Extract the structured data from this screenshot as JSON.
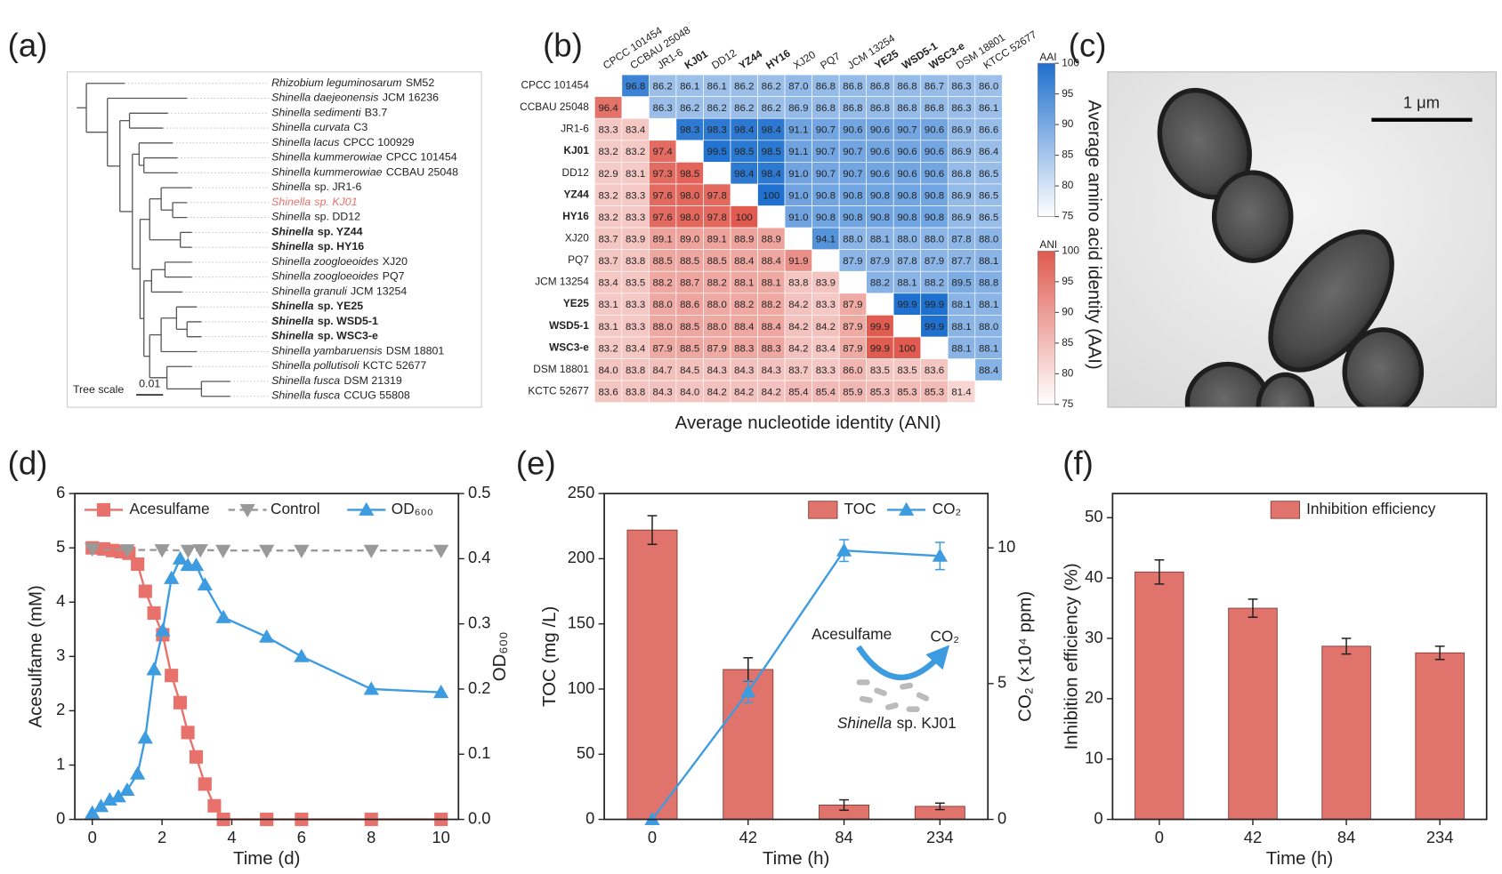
{
  "chart_data": [
    {
      "type": "tree",
      "label": "(a)",
      "leaves": [
        {
          "species": "Rhizobium leguminosarum",
          "strain": "SM52"
        },
        {
          "species": "Shinella daejeonensis",
          "strain": "JCM 16236"
        },
        {
          "species": "Shinella sedimenti",
          "strain": "B3.7"
        },
        {
          "species": "Shinella curvata",
          "strain": "C3"
        },
        {
          "species": "Shinella lacus",
          "strain": "CPCC 100929"
        },
        {
          "species": "Shinella kummerowiae",
          "strain": "CPCC 101454"
        },
        {
          "species": "Shinella kummerowiae",
          "strain": "CCBAU 25048"
        },
        {
          "species": "Shinella",
          "strain": "sp. JR1-6"
        },
        {
          "species": "Shinella",
          "strain": "sp. KJ01"
        },
        {
          "species": "Shinella",
          "strain": "sp. DD12"
        },
        {
          "species": "Shinella",
          "strain": "sp. YZ44"
        },
        {
          "species": "Shinella",
          "strain": "sp. HY16"
        },
        {
          "species": "Shinella zoogloeoides",
          "strain": "XJ20"
        },
        {
          "species": "Shinella zoogloeoides",
          "strain": "PQ7"
        },
        {
          "species": "Shinella granuli",
          "strain": "JCM 13254"
        },
        {
          "species": "Shinella",
          "strain": "sp. YE25"
        },
        {
          "species": "Shinella",
          "strain": "sp. WSD5-1"
        },
        {
          "species": "Shinella",
          "strain": "sp. WSC3-e"
        },
        {
          "species": "Shinella yambaruensis",
          "strain": "DSM 18801"
        },
        {
          "species": "Shinella pollutisoli",
          "strain": "KCTC 52677"
        },
        {
          "species": "Shinella fusca",
          "strain": "DSM 21319"
        },
        {
          "species": "Shinella fusca",
          "strain": "CCUG 55808"
        }
      ],
      "bold": [
        10,
        11,
        15,
        16,
        17
      ],
      "red": [
        8
      ],
      "red_color": "#e8706a",
      "scale_title": "Tree scale",
      "scale": 0.01
    },
    {
      "type": "heatmap",
      "label": "(b)",
      "x_categories": [
        "CPCC 101454",
        "CCBAU 25048",
        "JR1-6",
        "KJ01",
        "DD12",
        "YZ44",
        "HY16",
        "XJ20",
        "PQ7",
        "JCM 13254",
        "YE25",
        "WSD5-1",
        "WSC3-e",
        "DSM 18801",
        "KTCC 52677"
      ],
      "y_categories": [
        "CPCC 101454",
        "CCBAU 25048",
        "JR1-6",
        "KJ01",
        "DD12",
        "YZ44",
        "HY16",
        "XJ20",
        "PQ7",
        "JCM 13254",
        "YE25",
        "WSD5-1",
        "WSC3-e",
        "DSM 18801",
        "KCTC 52677"
      ],
      "bold": [
        3,
        5,
        6,
        10,
        11,
        12
      ],
      "red": [
        3
      ],
      "red_color": "#e0241b",
      "values": [
        [
          null,
          96.8,
          86.2,
          86.1,
          86.1,
          86.2,
          86.2,
          87.0,
          86.8,
          86.8,
          86.8,
          86.8,
          86.7,
          86.3,
          86.0
        ],
        [
          96.4,
          null,
          86.3,
          86.2,
          86.2,
          86.2,
          86.2,
          86.9,
          86.8,
          86.8,
          86.8,
          86.8,
          86.8,
          86.3,
          86.1
        ],
        [
          83.3,
          83.4,
          null,
          98.3,
          98.3,
          98.4,
          98.4,
          91.1,
          90.7,
          90.6,
          90.6,
          90.7,
          90.6,
          86.9,
          86.6
        ],
        [
          83.2,
          83.2,
          97.4,
          null,
          99.5,
          98.5,
          98.5,
          91.1,
          90.7,
          90.7,
          90.6,
          90.6,
          90.6,
          86.9,
          86.4
        ],
        [
          82.9,
          83.1,
          97.3,
          98.5,
          null,
          98.4,
          98.4,
          91.0,
          90.7,
          90.7,
          90.6,
          90.6,
          90.6,
          86.8,
          86.5
        ],
        [
          83.2,
          83.3,
          97.6,
          98.0,
          97.8,
          null,
          100,
          91.0,
          90.8,
          90.8,
          90.8,
          90.8,
          90.8,
          86.9,
          86.5
        ],
        [
          83.2,
          83.3,
          97.6,
          98.0,
          97.8,
          100,
          null,
          91.0,
          90.8,
          90.8,
          90.8,
          90.8,
          90.8,
          86.9,
          86.5
        ],
        [
          83.7,
          83.9,
          89.1,
          89.0,
          89.1,
          88.9,
          88.9,
          null,
          94.1,
          88.0,
          88.1,
          88.0,
          88.0,
          87.8,
          88.0
        ],
        [
          83.7,
          83.8,
          88.5,
          88.5,
          88.5,
          88.4,
          88.4,
          91.9,
          null,
          87.9,
          87.9,
          87.8,
          87.9,
          87.7,
          88.1
        ],
        [
          83.4,
          83.5,
          88.2,
          88.7,
          88.2,
          88.1,
          88.1,
          83.8,
          83.9,
          null,
          88.2,
          88.1,
          88.2,
          89.5,
          88.8
        ],
        [
          83.1,
          83.3,
          88.0,
          88.6,
          88.0,
          88.2,
          88.2,
          84.2,
          83.3,
          87.9,
          null,
          99.9,
          99.9,
          88.1,
          88.1
        ],
        [
          83.1,
          83.3,
          88.0,
          88.5,
          88.0,
          88.4,
          88.4,
          84.2,
          84.2,
          87.9,
          99.9,
          null,
          99.9,
          88.1,
          88.0
        ],
        [
          83.2,
          83.4,
          87.9,
          88.5,
          87.9,
          88.3,
          88.3,
          84.2,
          83.4,
          87.9,
          99.9,
          100,
          null,
          88.1,
          88.1
        ],
        [
          84.0,
          83.8,
          84.7,
          84.5,
          84.3,
          84.3,
          84.3,
          83.7,
          83.3,
          86.0,
          83.5,
          83.5,
          83.6,
          null,
          88.4
        ],
        [
          83.6,
          83.8,
          84.3,
          84.0,
          84.2,
          84.2,
          84.2,
          85.4,
          85.4,
          85.9,
          85.3,
          85.3,
          85.3,
          81.4,
          null
        ]
      ],
      "value_labels": [
        [
          null,
          "96.8",
          "86.2",
          "86.1",
          "86.1",
          "86.2",
          "86.2",
          "87.0",
          "86.8",
          "86.8",
          "86.8",
          "86.8",
          "86.7",
          "86.3",
          "86.0"
        ],
        [
          "96.4",
          null,
          "86.3",
          "86.2",
          "86.2",
          "86.2",
          "86.2",
          "86.9",
          "86.8",
          "86.8",
          "86.8",
          "86.8",
          "86.8",
          "86.3",
          "86.1"
        ],
        [
          "83.3",
          "83.4",
          null,
          "98.3",
          "98.3",
          "98.4",
          "98.4",
          "91.1",
          "90.7",
          "90.6",
          "90.6",
          "90.7",
          "90.6",
          "86.9",
          "86.6"
        ],
        [
          "83.2",
          "83.2",
          "97.4",
          null,
          "99.5",
          "98.5",
          "98.5",
          "91.1",
          "90.7",
          "90.7",
          "90.6",
          "90.6",
          "90.6",
          "86.9",
          "86.4"
        ],
        [
          "82.9",
          "83.1",
          "97.3",
          "98.5",
          null,
          "98.4",
          "98.4",
          "91.0",
          "90.7",
          "90.7",
          "90.6",
          "90.6",
          "90.6",
          "86.8",
          "86.5"
        ],
        [
          "83.2",
          "83.3",
          "97.6",
          "98.0",
          "97.8",
          null,
          "100",
          "91.0",
          "90.8",
          "90.8",
          "90.8",
          "90.8",
          "90.8",
          "86.9",
          "86.5"
        ],
        [
          "83.2",
          "83.3",
          "97.6",
          "98.0",
          "97.8",
          "100",
          null,
          "91.0",
          "90.8",
          "90.8",
          "90.8",
          "90.8",
          "90.8",
          "86.9",
          "86.5"
        ],
        [
          "83.7",
          "83.9",
          "89.1",
          "89.0",
          "89.1",
          "88.9",
          "88.9",
          null,
          "94.1",
          "88.0",
          "88.1",
          "88.0",
          "88.0",
          "87.8",
          "88.0"
        ],
        [
          "83.7",
          "83.8",
          "88.5",
          "88.5",
          "88.5",
          "88.4",
          "88.4",
          "91.9",
          null,
          "87.9",
          "87.9",
          "87.8",
          "87.9",
          "87.7",
          "88.1"
        ],
        [
          "83.4",
          "83.5",
          "88.2",
          "88.7",
          "88.2",
          "88.1",
          "88.1",
          "83.8",
          "83.9",
          null,
          "88.2",
          "88.1",
          "88.2",
          "89.5",
          "88.8"
        ],
        [
          "83.1",
          "83.3",
          "88.0",
          "88.6",
          "88.0",
          "88.2",
          "88.2",
          "84.2",
          "83.3",
          "87.9",
          null,
          "99.9",
          "99.9",
          "88.1",
          "88.1"
        ],
        [
          "83.1",
          "83.3",
          "88.0",
          "88.5",
          "88.0",
          "88.4",
          "88.4",
          "84.2",
          "84.2",
          "87.9",
          "99.9",
          null,
          "99.9",
          "88.1",
          "88.0"
        ],
        [
          "83.2",
          "83.4",
          "87.9",
          "88.5",
          "87.9",
          "88.3",
          "88.3",
          "84.2",
          "83.4",
          "87.9",
          "99.9",
          "100",
          null,
          "88.1",
          "88.1"
        ],
        [
          "84.0",
          "83.8",
          "84.7",
          "84.5",
          "84.3",
          "84.3",
          "84.3",
          "83.7",
          "83.3",
          "86.0",
          "83.5",
          "83.5",
          "83.6",
          null,
          "88.4"
        ],
        [
          "83.6",
          "83.8",
          "84.3",
          "84.0",
          "84.2",
          "84.2",
          "84.2",
          "85.4",
          "85.4",
          "85.9",
          "85.3",
          "85.3",
          "85.3",
          "81.4",
          null
        ]
      ],
      "colorbars": [
        {
          "name": "AAI",
          "triangle": "upper",
          "color": "#1f70cf",
          "lim": [
            75,
            100
          ],
          "ticks": [
            75,
            80,
            85,
            90,
            95,
            100
          ]
        },
        {
          "name": "ANI",
          "triangle": "lower",
          "color": "#e05a4f",
          "lim": [
            75,
            100
          ],
          "ticks": [
            75,
            80,
            85,
            90,
            95,
            100
          ]
        }
      ],
      "xlabel": "Average nucleotide identity (ANI)",
      "y2label": "Average amino acid identity (AAI)"
    },
    {
      "type": "image",
      "label": "(c)",
      "scale_bar": "1 μm"
    },
    {
      "type": "line",
      "label": "(d)",
      "xlabel": "Time (d)",
      "ylabel": "Acesulfame (mM)",
      "y2label": "OD₆₀₀",
      "xlim": [
        -0.5,
        10.5
      ],
      "xticks": [
        0,
        2,
        4,
        6,
        8,
        10
      ],
      "ylim": [
        0,
        6
      ],
      "yticks": [
        0,
        1,
        2,
        3,
        4,
        5,
        6
      ],
      "y2lim": [
        0,
        0.5
      ],
      "y2ticks": [
        {
          "value": 0,
          "label": "0.0"
        },
        0.1,
        0.2,
        0.3,
        0.4,
        0.5
      ],
      "series": [
        {
          "name": "Acesulfame",
          "color": "#e8716b",
          "marker": "square",
          "x": [
            0,
            0.33,
            0.58,
            0.83,
            1.05,
            1.3,
            1.52,
            1.77,
            2.02,
            2.27,
            2.52,
            2.74,
            2.98,
            3.23,
            3.5,
            3.76,
            5,
            6,
            8,
            10
          ],
          "values": [
            5.0,
            4.98,
            4.95,
            4.93,
            4.9,
            4.7,
            4.2,
            3.8,
            3.4,
            2.65,
            2.15,
            1.6,
            1.15,
            0.65,
            0.25,
            0,
            0,
            0,
            0,
            0
          ]
        },
        {
          "name": "Control",
          "color": "#999999",
          "marker": "triangle-down",
          "dash": true,
          "x": [
            0,
            1,
            2,
            2.75,
            3.1,
            3.75,
            5,
            6,
            8,
            10
          ],
          "values": [
            4.98,
            4.96,
            4.96,
            4.95,
            4.96,
            4.95,
            4.95,
            4.95,
            4.95,
            4.95
          ]
        },
        {
          "name": "OD₆₀₀",
          "color": "#3d9be0",
          "marker": "triangle",
          "axis": "y2",
          "x": [
            0,
            0.25,
            0.5,
            0.75,
            1.0,
            1.3,
            1.52,
            1.77,
            2.02,
            2.27,
            2.52,
            2.74,
            2.98,
            3.23,
            3.76,
            5,
            6,
            8,
            10
          ],
          "values": [
            0.01,
            0.02,
            0.03,
            0.035,
            0.045,
            0.07,
            0.125,
            0.23,
            0.29,
            0.37,
            0.4,
            0.39,
            0.39,
            0.36,
            0.31,
            0.28,
            0.25,
            0.2,
            0.195
          ]
        }
      ]
    },
    {
      "type": "bar",
      "label": "(e)",
      "xlabel": "Time (h)",
      "ylabel": "TOC (mg /L)",
      "y2label": "CO₂ (×10⁴ ppm)",
      "categories": [
        "0",
        "42",
        "84",
        "234"
      ],
      "ylim": [
        0,
        250
      ],
      "yticks": [
        0,
        50,
        100,
        150,
        200,
        250
      ],
      "y2lim": [
        0,
        12
      ],
      "y2ticks": [
        0,
        5,
        10
      ],
      "series": [
        {
          "name": "TOC",
          "kind": "bar",
          "color": "#e0736b",
          "values": [
            222,
            115,
            11,
            10
          ],
          "errors": [
            11,
            9,
            4,
            2.5
          ]
        },
        {
          "name": "CO₂",
          "kind": "line",
          "marker": "triangle",
          "color": "#3d9be0",
          "axis": "y2",
          "values": [
            0,
            4.7,
            9.9,
            9.7
          ],
          "errors": [
            0,
            0.4,
            0.4,
            0.5
          ]
        }
      ],
      "annotations": [
        "Acesulfame",
        "CO₂",
        "Shinella",
        "sp. KJ01"
      ]
    },
    {
      "type": "bar",
      "label": "(f)",
      "xlabel": "Time (h)",
      "ylabel": "Inhibition efficiency (%)",
      "categories": [
        "0",
        "42",
        "84",
        "234"
      ],
      "ylim": [
        0,
        54
      ],
      "yticks": [
        0,
        10,
        20,
        30,
        40,
        50
      ],
      "series": [
        {
          "name": "Inhibition efficiency",
          "kind": "bar",
          "color": "#e0736b",
          "values": [
            41,
            35,
            28.7,
            27.6
          ],
          "errors": [
            2,
            1.5,
            1.3,
            1.1
          ]
        }
      ]
    }
  ]
}
